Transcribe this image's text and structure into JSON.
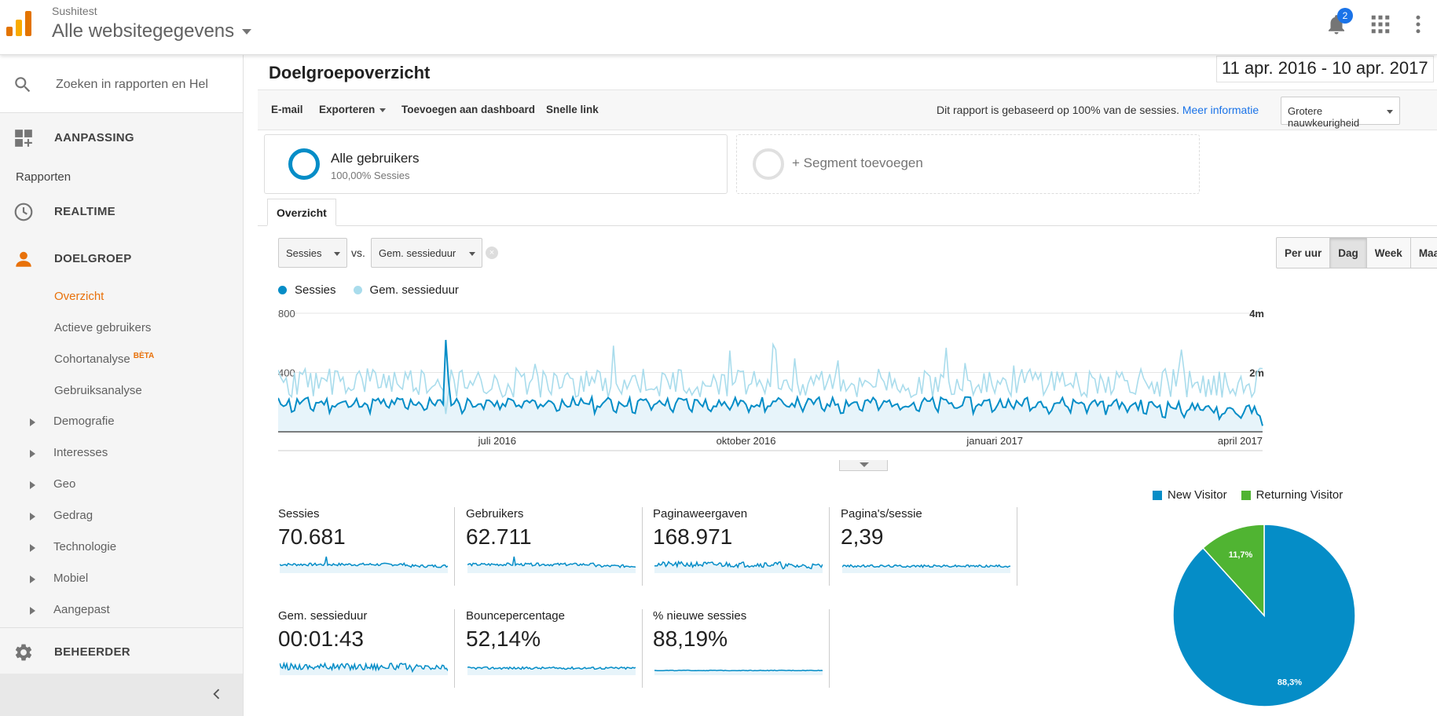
{
  "header": {
    "account": "Sushitest",
    "property": "Alle websitegegevens",
    "notification_count": "2"
  },
  "sidebar": {
    "search_placeholder": "Zoeken in rapporten en Hel",
    "customization": "AANPASSING",
    "reports_heading": "Rapporten",
    "realtime": "REALTIME",
    "audience": "DOELGROEP",
    "audience_items": [
      {
        "label": "Overzicht",
        "active": true
      },
      {
        "label": "Actieve gebruikers"
      },
      {
        "label": "Cohortanalyse",
        "badge": "BÈTA"
      },
      {
        "label": "Gebruiksanalyse"
      }
    ],
    "tree_items": [
      "Demografie",
      "Interesses",
      "Geo",
      "Gedrag",
      "Technologie",
      "Mobiel",
      "Aangepast"
    ],
    "admin": "BEHEERDER"
  },
  "main": {
    "title": "Doelgroepoverzicht",
    "date_range": "11 apr. 2016 - 10 apr. 2017",
    "toolbar": {
      "email": "E-mail",
      "export": "Exporteren",
      "add_dashboard": "Toevoegen aan dashboard",
      "quick_link": "Snelle link",
      "sampling_info": "Dit rapport is gebaseerd op 100% van de sessies.",
      "more_info": "Meer informatie",
      "precision": "Grotere nauwkeurigheid"
    },
    "segments": {
      "all_users": "Alle gebruikers",
      "all_users_sub": "100,00% Sessies",
      "add_segment": "+ Segment toevoegen"
    },
    "tab": "Overzicht",
    "metric_primary": "Sessies",
    "vs": "vs.",
    "metric_secondary": "Gem. sessieduur",
    "granularity": [
      "Per uur",
      "Dag",
      "Week",
      "Maand"
    ],
    "granularity_selected": "Dag"
  },
  "chart_data": [
    {
      "type": "line",
      "title": "",
      "x_range": [
        "11 apr. 2016",
        "10 apr. 2017"
      ],
      "x_tick_labels": [
        "juli 2016",
        "oktober 2016",
        "januari 2017",
        "april 2017"
      ],
      "y_left_ticks": [
        "800",
        "400"
      ],
      "y_right_ticks": [
        "4m",
        "2m"
      ],
      "y_left_range": [
        0,
        800
      ],
      "series": [
        {
          "name": "Sessies",
          "color": "#058dc7",
          "typical_range": [
            120,
            260
          ],
          "peak": 620,
          "peak_date": "juni 2016",
          "fill": true
        },
        {
          "name": "Gem. sessieduur",
          "color": "#a9dcec",
          "typical_range": [
            200,
            550
          ],
          "axis": "right"
        }
      ],
      "grid": true,
      "legend_position": "top-left"
    },
    {
      "type": "pie",
      "slices": [
        {
          "name": "New Visitor",
          "value": 88.3,
          "label": "88,3%",
          "color": "#058dc7"
        },
        {
          "name": "Returning Visitor",
          "value": 11.7,
          "label": "11,7%",
          "color": "#50b432"
        }
      ],
      "legend_position": "top"
    }
  ],
  "kpis": [
    {
      "name": "Sessies",
      "value": "70.681"
    },
    {
      "name": "Gebruikers",
      "value": "62.711"
    },
    {
      "name": "Paginaweergaven",
      "value": "168.971"
    },
    {
      "name": "Pagina's/sessie",
      "value": "2,39"
    },
    {
      "name": "Gem. sessieduur",
      "value": "00:01:43"
    },
    {
      "name": "Bouncepercentage",
      "value": "52,14%"
    },
    {
      "name": "% nieuwe sessies",
      "value": "88,19%"
    }
  ],
  "colors": {
    "accent": "#e8710a",
    "primary_series": "#058dc7",
    "secondary_series": "#a9dcec",
    "returning": "#50b432"
  }
}
